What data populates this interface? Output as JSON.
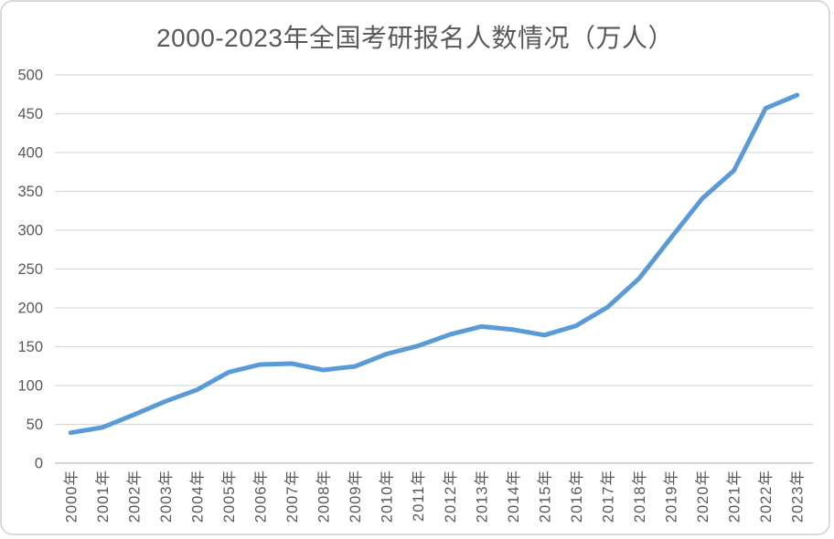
{
  "chart_data": {
    "type": "line",
    "title": "2000-2023年全国考研报名人数情况（万人）",
    "categories": [
      "2000年",
      "2001年",
      "2002年",
      "2003年",
      "2004年",
      "2005年",
      "2006年",
      "2007年",
      "2008年",
      "2009年",
      "2010年",
      "2011年",
      "2012年",
      "2013年",
      "2014年",
      "2015年",
      "2016年",
      "2017年",
      "2018年",
      "2019年",
      "2020年",
      "2021年",
      "2022年",
      "2023年"
    ],
    "values": [
      39.2,
      46,
      62.4,
      79.7,
      94.5,
      117.2,
      127.1,
      128.2,
      120,
      124.6,
      140.6,
      151.1,
      165.6,
      176,
      172,
      164.9,
      177,
      201,
      238,
      290,
      341,
      377,
      457,
      474
    ],
    "xlabel": "",
    "ylabel": "",
    "ylim": [
      0,
      500
    ],
    "yticks": [
      0,
      50,
      100,
      150,
      200,
      250,
      300,
      350,
      400,
      450,
      500
    ],
    "grid": "horizontal",
    "legend": "none",
    "colors": {
      "line": "#5B9BD5",
      "grid": "#D9D9D9",
      "axis_line": "#C9C9C9",
      "text": "#595959",
      "background": "#FFFFFF",
      "border": "#D9D9D9"
    }
  }
}
